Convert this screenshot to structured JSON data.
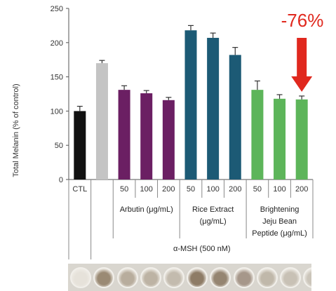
{
  "chart_data": {
    "type": "bar",
    "ylabel": "Total Melanin (% of control)",
    "ylim": [
      0,
      250
    ],
    "yticks": [
      0,
      50,
      100,
      150,
      200,
      250
    ],
    "grid": false,
    "categories": [
      "CTL",
      "",
      "50",
      "100",
      "200",
      "50",
      "100",
      "200",
      "50",
      "100",
      "200"
    ],
    "values": [
      100,
      170,
      131,
      126,
      116,
      218,
      207,
      182,
      131,
      118,
      117
    ],
    "errors": [
      7,
      4,
      6,
      4,
      4,
      7,
      7,
      11,
      13,
      6,
      5
    ],
    "colors": [
      "#111111",
      "#c4c4c4",
      "#6b1f63",
      "#6b1f63",
      "#6b1f63",
      "#1c5a75",
      "#1c5a75",
      "#1c5a75",
      "#5db55a",
      "#5db55a",
      "#5db55a"
    ],
    "groups": [
      {
        "label": "Arbutin (μg/mL)",
        "start": 2,
        "end": 4
      },
      {
        "label": "Rice Extract (μg/mL)",
        "start": 5,
        "end": 7
      },
      {
        "label": "Brightening Jeju Bean Peptide (μg/mL)",
        "start": 8,
        "end": 10
      }
    ],
    "treatment": {
      "label": "α-MSH (500 nM)",
      "start": 1,
      "end": 10
    },
    "annotation": {
      "text": "-76%",
      "target": 10,
      "color": "#e0281e"
    }
  },
  "well_colors": [
    "#e6e2da",
    "#9a8a74",
    "#b8ad9d",
    "#bdb3a4",
    "#c3bbae",
    "#8e7c66",
    "#958571",
    "#a6978a",
    "#c0b8aa",
    "#c8c1b5",
    "#cbc5ba"
  ]
}
